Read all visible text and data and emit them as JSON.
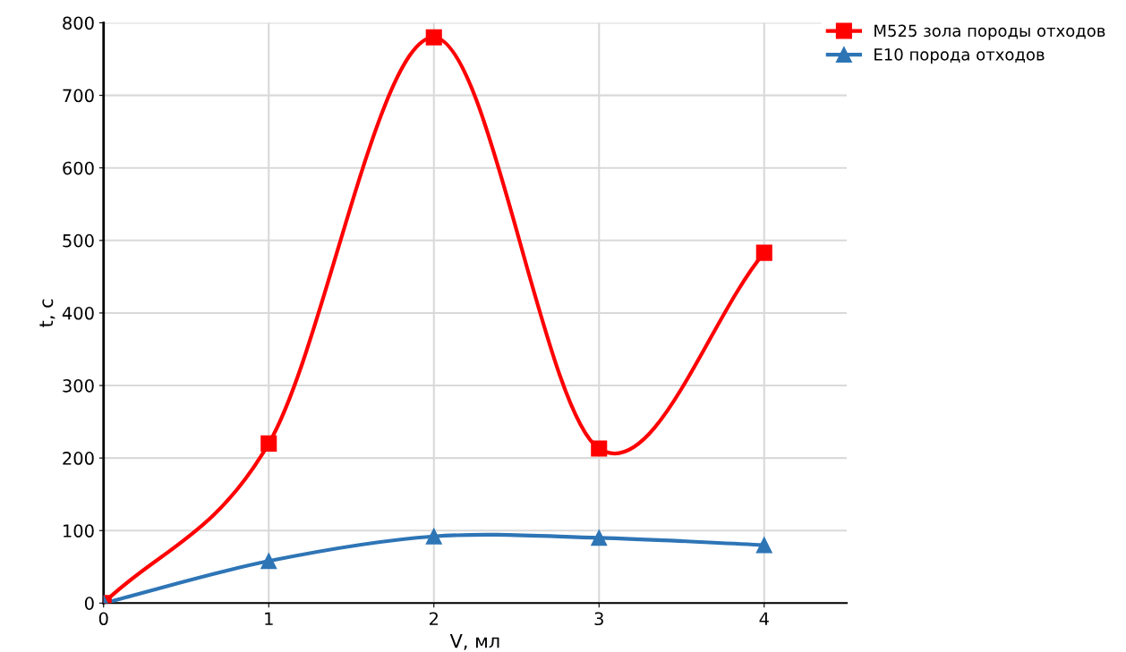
{
  "chart_data": {
    "type": "line",
    "xlabel": "V, мл",
    "ylabel": "t, с",
    "x": [
      0,
      1,
      2,
      3,
      4
    ],
    "series": [
      {
        "name": "М525 зола породы отходов",
        "color": "#ff0000",
        "marker": "square",
        "values": [
          0,
          220,
          780,
          213,
          483
        ]
      },
      {
        "name": "Е10 порода отходов",
        "color": "#2e75b6",
        "marker": "triangle",
        "values": [
          0,
          58,
          92,
          90,
          80
        ]
      }
    ],
    "xlim": [
      0,
      4.5
    ],
    "xticks": [
      0,
      1,
      2,
      3,
      4
    ],
    "ylim": [
      0,
      800
    ],
    "yticks": [
      0,
      100,
      200,
      300,
      400,
      500,
      600,
      700,
      800
    ],
    "grid": true,
    "legend": "top right",
    "line_style": "solid"
  }
}
